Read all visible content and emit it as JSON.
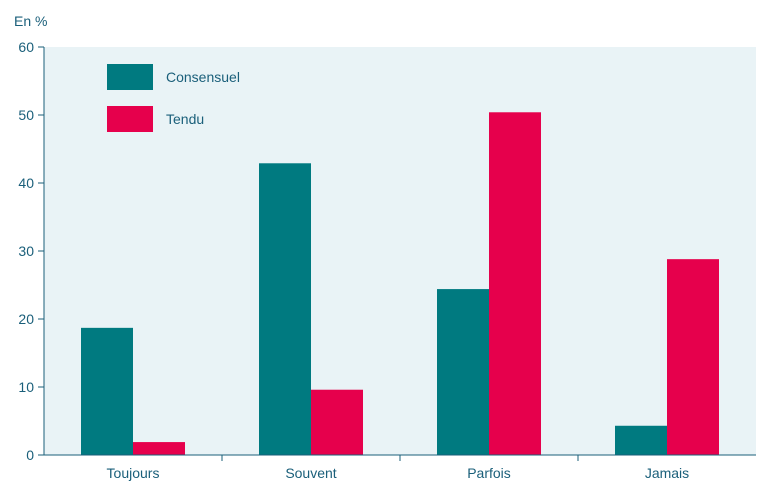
{
  "chart_data": {
    "type": "bar",
    "unit_label": "En %",
    "categories": [
      "Toujours",
      "Souvent",
      "Parfois",
      "Jamais"
    ],
    "series": [
      {
        "name": "Consensuel",
        "color": "#007a80",
        "values": [
          18.7,
          42.9,
          24.4,
          4.3
        ]
      },
      {
        "name": "Tendu",
        "color": "#e6004c",
        "values": [
          1.9,
          9.6,
          50.4,
          28.8
        ]
      }
    ],
    "ylim": [
      0,
      60
    ],
    "yticks": [
      0,
      10,
      20,
      30,
      40,
      50,
      60
    ],
    "grid": false,
    "legend_position": "top-left",
    "plot_background": "#e9f3f6",
    "axis_color": "#1a5f7a"
  }
}
